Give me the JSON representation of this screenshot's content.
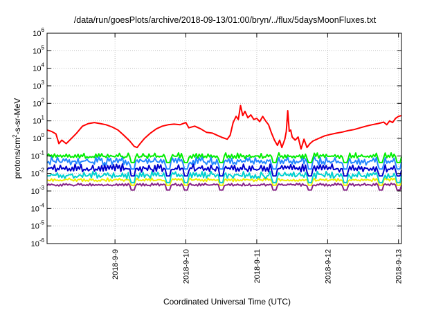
{
  "chart_data": {
    "type": "line",
    "title": "/data/run/goesPlots/archive/2018-09-13/01:00/bryn/../flux/5daysMoonFluxes.txt",
    "xlabel": "Coordinated Universal Time (UTC)",
    "ylabel": "protons/cm²-s-sr-MeV",
    "ylabel_parts": {
      "pre": "protons/cm",
      "sup": "2",
      "post": "-s-sr-MeV"
    },
    "yscale": "log",
    "ylim": [
      1e-06,
      1000000.0
    ],
    "y_ticks": [
      {
        "base": "10",
        "exp": "-6"
      },
      {
        "base": "10",
        "exp": "-5"
      },
      {
        "base": "10",
        "exp": "-4"
      },
      {
        "base": "10",
        "exp": "-3"
      },
      {
        "base": "10",
        "exp": "-2"
      },
      {
        "base": "10",
        "exp": "-1"
      },
      {
        "base": "10",
        "exp": "0"
      },
      {
        "base": "10",
        "exp": "1"
      },
      {
        "base": "10",
        "exp": "2"
      },
      {
        "base": "10",
        "exp": "3"
      },
      {
        "base": "10",
        "exp": "4"
      },
      {
        "base": "10",
        "exp": "5"
      },
      {
        "base": "10",
        "exp": "6"
      }
    ],
    "xlim": [
      "2018-09-08 01:00",
      "2018-09-13 01:00"
    ],
    "x_ticks": [
      {
        "label": "2018-9-9",
        "x": "2018-09-09"
      },
      {
        "label": "2018-9-10",
        "x": "2018-09-10"
      },
      {
        "label": "2018-9-11",
        "x": "2018-09-11"
      },
      {
        "label": "2018-9-12",
        "x": "2018-09-12"
      },
      {
        "label": "2018-9-13",
        "x": "2018-09-13"
      }
    ],
    "grid": true,
    "legend": "none",
    "series": [
      {
        "color": "#ff0000",
        "points": [
          [
            "2018-09-08 01:00",
            3.0
          ],
          [
            "2018-09-08 02:30",
            2.5
          ],
          [
            "2018-09-08 04:00",
            1.8
          ],
          [
            "2018-09-08 05:00",
            0.5
          ],
          [
            "2018-09-08 06:00",
            0.8
          ],
          [
            "2018-09-08 07:30",
            0.5
          ],
          [
            "2018-09-08 09:00",
            0.9
          ],
          [
            "2018-09-08 11:00",
            2.0
          ],
          [
            "2018-09-08 13:00",
            5.0
          ],
          [
            "2018-09-08 15:00",
            7.0
          ],
          [
            "2018-09-08 17:00",
            8.0
          ],
          [
            "2018-09-08 19:00",
            7.0
          ],
          [
            "2018-09-08 21:00",
            6.0
          ],
          [
            "2018-09-08 23:00",
            4.5
          ],
          [
            "2018-09-09 01:00",
            3.0
          ],
          [
            "2018-09-09 03:00",
            1.5
          ],
          [
            "2018-09-09 05:00",
            0.7
          ],
          [
            "2018-09-09 06:30",
            0.35
          ],
          [
            "2018-09-09 07:30",
            0.3
          ],
          [
            "2018-09-09 08:30",
            0.5
          ],
          [
            "2018-09-09 10:00",
            1.0
          ],
          [
            "2018-09-09 12:00",
            2.0
          ],
          [
            "2018-09-09 14:00",
            3.5
          ],
          [
            "2018-09-09 16:00",
            5.0
          ],
          [
            "2018-09-09 18:00",
            6.0
          ],
          [
            "2018-09-09 20:00",
            6.5
          ],
          [
            "2018-09-09 22:00",
            6.0
          ],
          [
            "2018-09-10 00:00",
            8.0
          ],
          [
            "2018-09-10 01:00",
            4.0
          ],
          [
            "2018-09-10 03:00",
            5.0
          ],
          [
            "2018-09-10 05:00",
            3.5
          ],
          [
            "2018-09-10 07:00",
            2.2
          ],
          [
            "2018-09-10 09:00",
            2.0
          ],
          [
            "2018-09-10 11:00",
            1.4
          ],
          [
            "2018-09-10 12:30",
            1.1
          ],
          [
            "2018-09-10 14:00",
            0.9
          ],
          [
            "2018-09-10 15:00",
            1.5
          ],
          [
            "2018-09-10 16:00",
            8.0
          ],
          [
            "2018-09-10 17:00",
            18.0
          ],
          [
            "2018-09-10 17:45",
            12.0
          ],
          [
            "2018-09-10 18:30",
            75.0
          ],
          [
            "2018-09-10 19:15",
            20.0
          ],
          [
            "2018-09-10 20:00",
            35.0
          ],
          [
            "2018-09-10 21:00",
            15.0
          ],
          [
            "2018-09-10 22:00",
            22.0
          ],
          [
            "2018-09-10 23:00",
            12.0
          ],
          [
            "2018-09-11 00:00",
            14.0
          ],
          [
            "2018-09-11 01:00",
            9.0
          ],
          [
            "2018-09-11 02:00",
            18.0
          ],
          [
            "2018-09-11 03:00",
            10.0
          ],
          [
            "2018-09-11 04:00",
            6.0
          ],
          [
            "2018-09-11 05:00",
            2.0
          ],
          [
            "2018-09-11 06:00",
            0.8
          ],
          [
            "2018-09-11 07:00",
            0.4
          ],
          [
            "2018-09-11 07:45",
            0.8
          ],
          [
            "2018-09-11 08:30",
            0.3
          ],
          [
            "2018-09-11 09:30",
            0.9
          ],
          [
            "2018-09-11 10:00",
            2.5
          ],
          [
            "2018-09-11 10:30",
            38.0
          ],
          [
            "2018-09-11 11:00",
            2.5
          ],
          [
            "2018-09-11 11:30",
            3.0
          ],
          [
            "2018-09-11 12:00",
            1.2
          ],
          [
            "2018-09-11 13:00",
            0.8
          ],
          [
            "2018-09-11 14:00",
            1.2
          ],
          [
            "2018-09-11 15:00",
            0.25
          ],
          [
            "2018-09-11 16:00",
            0.9
          ],
          [
            "2018-09-11 17:00",
            0.3
          ],
          [
            "2018-09-11 18:00",
            0.5
          ],
          [
            "2018-09-11 19:00",
            0.7
          ],
          [
            "2018-09-11 21:00",
            1.0
          ],
          [
            "2018-09-11 23:00",
            1.4
          ],
          [
            "2018-09-12 01:00",
            1.7
          ],
          [
            "2018-09-12 03:00",
            2.0
          ],
          [
            "2018-09-12 05:00",
            2.3
          ],
          [
            "2018-09-12 07:00",
            2.8
          ],
          [
            "2018-09-12 09:00",
            3.2
          ],
          [
            "2018-09-12 11:00",
            4.0
          ],
          [
            "2018-09-12 13:00",
            5.0
          ],
          [
            "2018-09-12 15:00",
            6.0
          ],
          [
            "2018-09-12 17:00",
            7.0
          ],
          [
            "2018-09-12 19:00",
            8.5
          ],
          [
            "2018-09-12 20:00",
            6.0
          ],
          [
            "2018-09-12 21:00",
            10.0
          ],
          [
            "2018-09-12 22:00",
            8.0
          ],
          [
            "2018-09-12 23:00",
            14.0
          ],
          [
            "2018-09-13 00:00",
            18.0
          ],
          [
            "2018-09-13 01:00",
            20.0
          ]
        ]
      },
      {
        "color": "#00ee00",
        "level": 0.1,
        "note_range": [
          0.07,
          0.15
        ]
      },
      {
        "color": "#2288ff",
        "level": 0.055,
        "note_range": [
          0.03,
          0.09
        ]
      },
      {
        "color": "#0000cc",
        "level": 0.02,
        "note_range": [
          0.012,
          0.035
        ]
      },
      {
        "color": "#00d0d0",
        "level": 0.009,
        "note_range": [
          0.005,
          0.013
        ]
      },
      {
        "color": "#eeee00",
        "level": 0.0045,
        "note_range": [
          0.0035,
          0.0055
        ]
      },
      {
        "color": "#882288",
        "level": 0.0023,
        "note_range": [
          0.0019,
          0.0028
        ]
      }
    ]
  }
}
